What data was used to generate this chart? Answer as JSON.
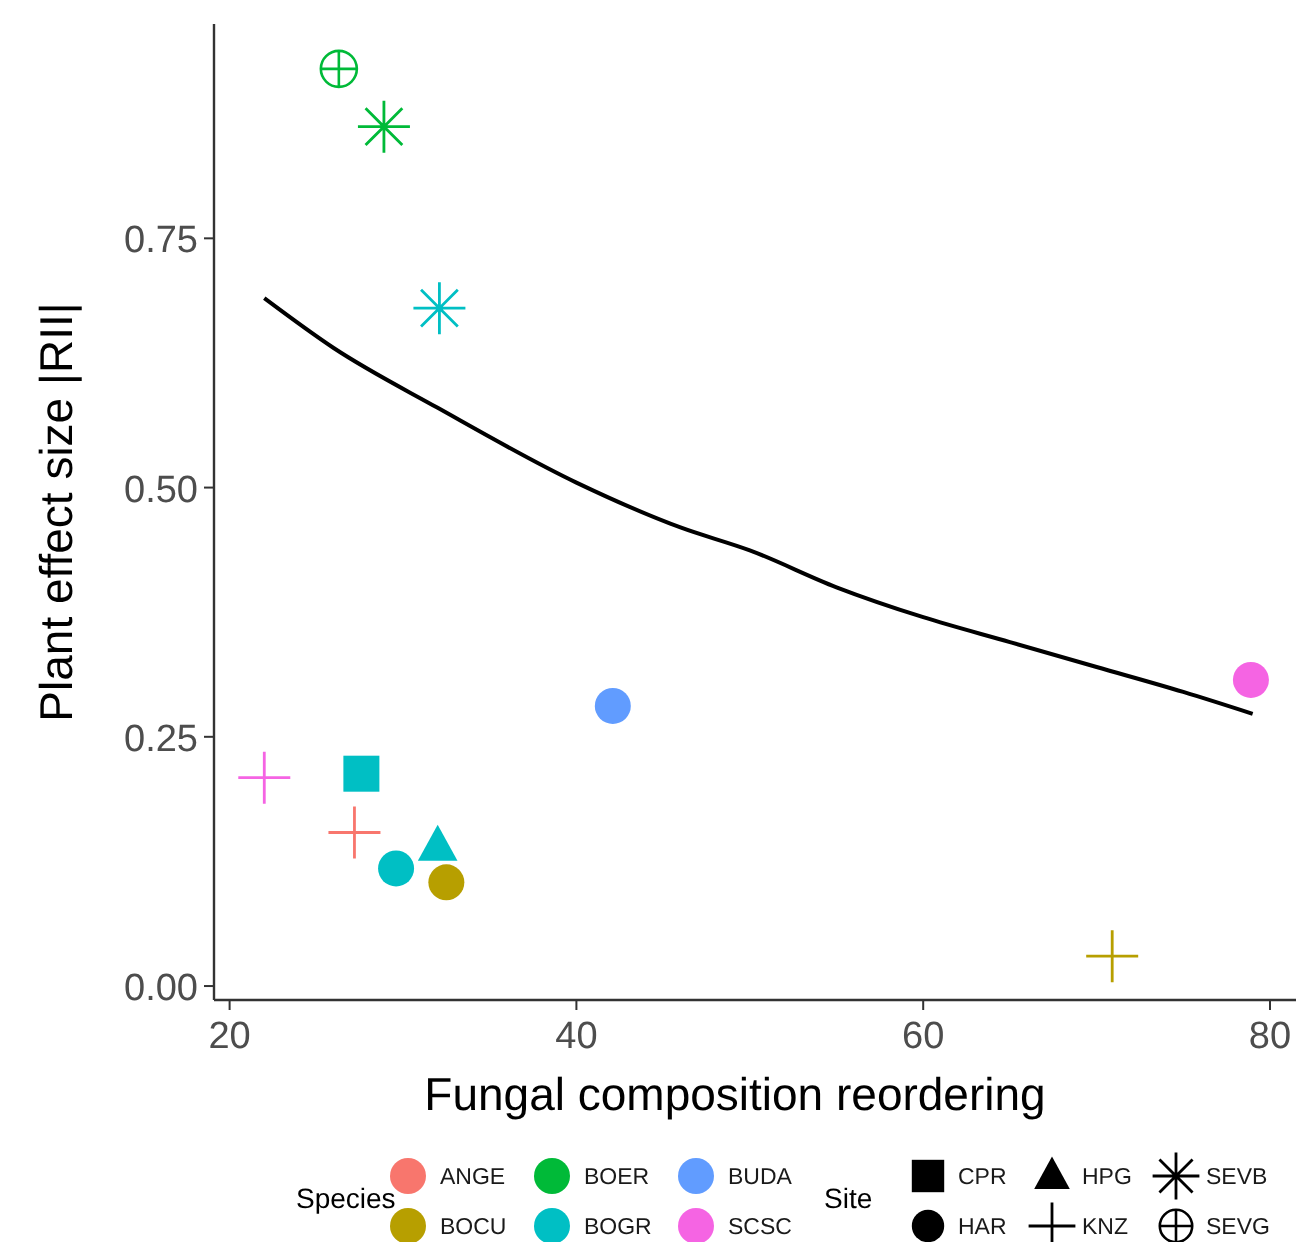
{
  "chart_data": {
    "type": "scatter",
    "xlabel": "Fungal  composition reordering",
    "ylabel": "Plant effect size |RII|",
    "xlim": [
      19.1,
      81.5
    ],
    "ylim": [
      -0.014,
      0.965
    ],
    "xticks": [
      20,
      40,
      60,
      80
    ],
    "yticks": [
      {
        "value": 0,
        "label": "0.00"
      },
      {
        "value": 0.25,
        "label": "0.25"
      },
      {
        "value": 0.5,
        "label": "0.50"
      },
      {
        "value": 0.75,
        "label": "0.75"
      }
    ],
    "grid": false,
    "legend": "bottom",
    "legend_title": [
      "Species",
      "Site"
    ],
    "series": [
      {
        "type": "line",
        "color": "#000000",
        "line_style": "solid",
        "x": [
          22,
          26,
          32,
          40,
          46,
          50,
          55,
          60,
          65,
          70,
          75,
          79
        ],
        "values": [
          0.69,
          0.64,
          0.58,
          0.505,
          0.46,
          0.437,
          0.4,
          0.37,
          0.345,
          0.32,
          0.295,
          0.273
        ]
      },
      {
        "name": "ANGE",
        "color": "#f8766d",
        "x": [
          27.2
        ],
        "values": [
          0.154
        ],
        "marker": [
          "cross"
        ]
      },
      {
        "name": "BOCU",
        "color": "#b79f00",
        "x": [
          32.5,
          70.9
        ],
        "values": [
          0.104,
          0.03
        ],
        "marker": [
          "circle",
          "cross"
        ]
      },
      {
        "name": "BOER",
        "color": "#00ba38",
        "x": [
          26.3,
          28.9
        ],
        "values": [
          0.92,
          0.862
        ],
        "marker": [
          "circle-cross",
          "star"
        ]
      },
      {
        "name": "BOGR",
        "color": "#00bfc4",
        "x": [
          27.6,
          32.0,
          29.6,
          32.1
        ],
        "values": [
          0.213,
          0.14,
          0.118,
          0.68
        ],
        "marker": [
          "square",
          "triangle",
          "circle",
          "star"
        ]
      },
      {
        "name": "BUDA",
        "color": "#619cff",
        "x": [
          42.1
        ],
        "values": [
          0.281
        ],
        "marker": [
          "circle"
        ]
      },
      {
        "name": "SCSC",
        "color": "#f564e3",
        "x": [
          78.9,
          22.0
        ],
        "values": [
          0.307,
          0.209
        ],
        "marker": [
          "circle",
          "cross"
        ]
      },
      {
        "name": "CPR",
        "color": "#000000",
        "marker": "square"
      },
      {
        "name": "HAR",
        "color": "#000000",
        "marker": "circle"
      },
      {
        "name": "HPG",
        "color": "#000000",
        "marker": "triangle"
      },
      {
        "name": "KNZ",
        "color": "#000000",
        "marker": "cross"
      },
      {
        "name": "SEVB",
        "color": "#000000",
        "marker": "star"
      },
      {
        "name": "SEVG",
        "color": "#000000",
        "marker": "circle-cross"
      }
    ]
  }
}
